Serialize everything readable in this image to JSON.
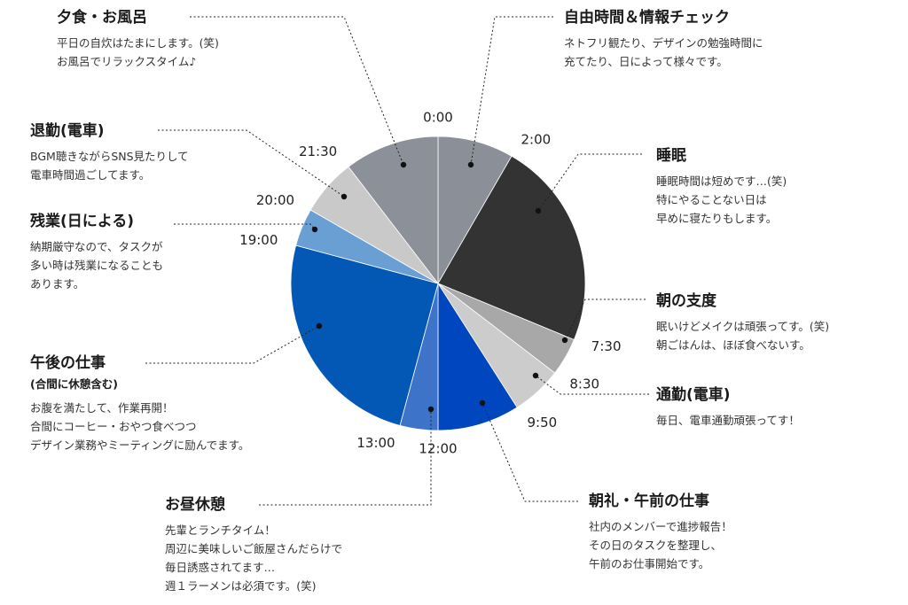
{
  "chart_data": {
    "type": "pie",
    "categories": [
      "自由時間＆情報チェック",
      "睡眠",
      "朝の支度",
      "通勤(電車)",
      "朝礼・午前の仕事",
      "お昼休憩",
      "午後の仕事",
      "残業(日による)",
      "退勤(電車)",
      "夕食・お風呂"
    ],
    "tick_labels": [
      "0:00",
      "2:00",
      "7:30",
      "8:30",
      "9:50",
      "12:00",
      "13:00",
      "19:00",
      "20:00",
      "21:30"
    ],
    "slices": [
      {
        "start": "0:00",
        "end": "2:00",
        "hours": 2,
        "color": "#8a8f98"
      },
      {
        "start": "2:00",
        "end": "7:30",
        "hours": 5.5,
        "color": "#333333"
      },
      {
        "start": "7:30",
        "end": "8:30",
        "hours": 1,
        "color": "#a8a8a8"
      },
      {
        "start": "8:30",
        "end": "9:50",
        "hours": 1.333,
        "color": "#cccccc"
      },
      {
        "start": "9:50",
        "end": "12:00",
        "hours": 2.167,
        "color": "#0047bf"
      },
      {
        "start": "12:00",
        "end": "13:00",
        "hours": 1,
        "color": "#3d73c8"
      },
      {
        "start": "13:00",
        "end": "19:00",
        "hours": 6,
        "color": "#0358b6"
      },
      {
        "start": "19:00",
        "end": "20:00",
        "hours": 1,
        "color": "#6a9fd4"
      },
      {
        "start": "20:00",
        "end": "21:30",
        "hours": 1.5,
        "color": "#c9c9c9"
      },
      {
        "start": "21:30",
        "end": "24:00",
        "hours": 2.5,
        "color": "#8c9199"
      }
    ]
  },
  "annotations": {
    "free_time": {
      "title": "自由時間＆情報チェック",
      "lines": [
        "ネトフリ観たり、デザインの勉強時間に",
        "充てたり、日によって様々です。"
      ]
    },
    "sleep": {
      "title": "睡眠",
      "lines": [
        "睡眠時間は短めです…(笑)",
        "特にやることない日は",
        "早めに寝たりもします。"
      ]
    },
    "morning_prep": {
      "title": "朝の支度",
      "lines": [
        "眠いけどメイクは頑張ってす。(笑)",
        "朝ごはんは、ほぼ食べないす。"
      ]
    },
    "commute": {
      "title": "通勤(電車)",
      "lines": [
        "毎日、電車通勤頑張ってす！"
      ]
    },
    "morning_work": {
      "title": "朝礼・午前の仕事",
      "lines": [
        "社内のメンバーで進捗報告！",
        "その日のタスクを整理し、",
        "午前のお仕事開始です。"
      ]
    },
    "lunch": {
      "title": "お昼休憩",
      "lines": [
        "先輩とランチタイム！",
        "周辺に美味しいご飯屋さんだらけで",
        "毎日誘惑されてます…",
        "週１ラーメンは必須です。(笑)"
      ]
    },
    "afternoon_work": {
      "title": "午後の仕事",
      "subtitle": "(合間に休憩含む)",
      "lines": [
        "お腹を満たして、作業再開！",
        "合間にコーヒー・おやつ食べつつ",
        "デザイン業務やミーティングに励んでます。"
      ]
    },
    "overtime": {
      "title": "残業(日による)",
      "lines": [
        "納期厳守なので、タスクが",
        "多い時は残業になることも",
        "あります。"
      ]
    },
    "leave_commute": {
      "title": "退勤(電車)",
      "lines": [
        "BGM聴きながらSNS見たりして",
        "電車時間過ごしてます。"
      ]
    },
    "dinner": {
      "title": "夕食・お風呂",
      "lines": [
        "平日の自炊はたまにします。(笑)",
        "お風呂でリラックスタイム♪"
      ]
    }
  }
}
